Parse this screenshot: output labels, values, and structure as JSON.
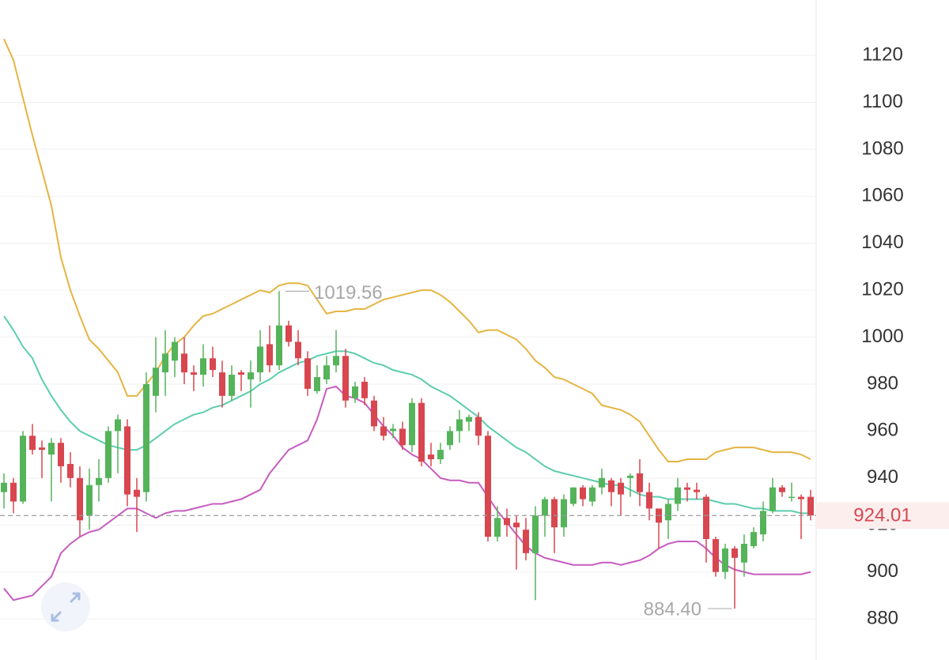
{
  "chart_data": {
    "type": "candlestick",
    "open": [
      934,
      938,
      930,
      958,
      953,
      950,
      955,
      946,
      940,
      924,
      937,
      940,
      960,
      962,
      935,
      934,
      975,
      985,
      990,
      993,
      985,
      984,
      991,
      985,
      975,
      985,
      982,
      985,
      997,
      988,
      1005,
      998,
      991,
      977,
      982,
      988,
      992,
      974,
      981,
      973,
      962,
      960,
      961,
      954,
      972,
      950,
      948,
      954,
      960,
      964,
      966,
      958,
      915,
      923,
      921,
      918,
      908,
      924,
      931,
      919,
      929,
      936,
      930,
      936,
      939,
      938,
      940,
      942,
      934,
      927,
      922,
      929,
      936,
      935,
      932,
      914,
      900,
      910,
      904,
      911,
      916,
      926,
      936,
      932,
      932,
      932
    ],
    "high": [
      942,
      940,
      960,
      963,
      956,
      957,
      957,
      951,
      945,
      944,
      948,
      962,
      967,
      965,
      940,
      985,
      1000,
      1003,
      1000,
      1000,
      988,
      997,
      996,
      990,
      988,
      986,
      990,
      1003,
      1005,
      1019.56,
      1007,
      1003,
      994,
      988,
      992,
      1003,
      995,
      981,
      983,
      975,
      966,
      963,
      964,
      974,
      974,
      955,
      955,
      962,
      969,
      967,
      968,
      960,
      928,
      927,
      924,
      923,
      928,
      932,
      932,
      933,
      936,
      937,
      937,
      944,
      940,
      940,
      942,
      948,
      938,
      927,
      931,
      940,
      938,
      938,
      933,
      915,
      912,
      911,
      916,
      919,
      930,
      940,
      937,
      938,
      933,
      935
    ],
    "low": [
      927,
      925,
      929,
      950,
      940,
      930,
      938,
      936,
      915,
      918,
      930,
      938,
      942,
      928,
      917,
      930,
      968,
      975,
      983,
      980,
      977,
      979,
      983,
      970,
      973,
      977,
      970,
      981,
      985,
      986,
      996,
      988,
      975,
      976,
      980,
      985,
      970,
      972,
      971,
      960,
      956,
      957,
      952,
      951,
      945,
      945,
      946,
      952,
      955,
      960,
      954,
      913,
      913,
      915,
      901,
      905,
      888,
      915,
      908,
      915,
      928,
      928,
      928,
      933,
      928,
      924,
      932,
      928,
      922,
      910,
      914,
      926,
      930,
      931,
      904,
      898,
      897,
      884.4,
      898,
      910,
      913,
      925,
      932,
      930,
      914,
      922
    ],
    "close": [
      938,
      930,
      958,
      952,
      952,
      955,
      945,
      940,
      922,
      937,
      940,
      960,
      965,
      933,
      932,
      980,
      987,
      993,
      998,
      985,
      984,
      991,
      986,
      975,
      984,
      984,
      985,
      996,
      988,
      1005,
      998,
      991,
      978,
      983,
      988,
      992,
      973,
      979,
      974,
      962,
      958,
      961,
      954,
      972,
      947,
      948,
      952,
      960,
      965,
      966,
      958,
      915,
      923,
      920,
      919,
      908,
      924,
      931,
      919,
      931,
      936,
      931,
      936,
      940,
      934,
      933,
      941,
      934,
      927,
      921,
      929,
      936,
      935,
      934,
      914,
      900,
      910,
      906,
      912,
      917,
      926,
      936,
      934,
      932,
      931,
      924.01
    ],
    "up_color": "#55b35a",
    "down_color": "#d8464f",
    "upper_band": {
      "color": "#e5b442",
      "values": [
        1127,
        1118,
        1102,
        1086,
        1071,
        1056,
        1034,
        1020,
        1009,
        999,
        995,
        990,
        985,
        975,
        975,
        980,
        985,
        992,
        997,
        1000,
        1005,
        1009,
        1010,
        1012,
        1014,
        1016,
        1018,
        1020,
        1019,
        1022,
        1023,
        1023,
        1022,
        1016,
        1010,
        1011,
        1011,
        1012,
        1012,
        1014,
        1016,
        1017,
        1018,
        1019,
        1020,
        1020,
        1018,
        1015,
        1011,
        1007,
        1002,
        1003,
        1003,
        1001,
        999,
        995,
        990,
        987,
        983,
        982,
        980,
        978,
        976,
        971,
        970,
        969,
        967,
        964,
        958,
        952,
        947,
        947,
        948,
        948,
        948,
        951,
        952,
        953,
        953,
        953,
        952,
        951,
        951,
        951,
        950,
        948
      ]
    },
    "middle_band": {
      "color": "#5ccdae",
      "values": [
        1009,
        1003,
        996,
        991,
        982,
        975,
        969,
        964,
        960,
        958,
        956,
        954,
        953,
        952,
        952,
        954,
        957,
        960,
        963,
        965,
        967,
        968,
        970,
        971,
        973,
        975,
        977,
        980,
        982,
        985,
        987,
        989,
        990,
        992,
        993,
        994,
        994,
        993,
        991,
        989,
        988,
        986,
        985,
        984,
        982,
        979,
        977,
        975,
        972,
        969,
        966,
        962,
        959,
        956,
        953,
        951,
        948,
        945,
        943,
        942,
        941,
        940,
        939,
        938,
        937,
        937,
        935,
        933,
        932,
        932,
        931,
        931,
        931,
        931,
        931,
        930,
        929,
        929,
        928,
        927,
        927,
        926,
        926,
        926,
        925,
        925
      ]
    },
    "lower_band": {
      "color": "#c75cc0",
      "values": [
        893,
        888,
        889,
        890,
        894,
        898,
        908,
        912,
        915,
        917,
        918,
        921,
        924,
        927,
        927,
        925,
        923,
        925,
        926,
        926,
        927,
        928,
        929,
        929,
        930,
        931,
        933,
        935,
        942,
        947,
        952,
        954,
        956,
        965,
        978,
        979,
        975,
        974,
        972,
        967,
        962,
        958,
        953,
        950,
        948,
        944,
        940,
        939,
        939,
        938,
        938,
        932,
        926,
        921,
        916,
        911,
        908,
        906,
        905,
        904,
        903,
        903,
        903,
        904,
        904,
        903,
        904,
        905,
        907,
        910,
        912,
        913,
        913,
        913,
        910,
        906,
        903,
        901,
        900,
        899,
        899,
        899,
        899,
        899,
        899,
        900
      ]
    },
    "high_label": "1019.56",
    "low_label": "884.40",
    "last_price": 924.01,
    "ylim": [
      862.5,
      1143.6
    ],
    "yticks": [
      880,
      900,
      920,
      940,
      960,
      980,
      1000,
      1020,
      1040,
      1060,
      1080,
      1100,
      1120
    ],
    "grid": true
  }
}
